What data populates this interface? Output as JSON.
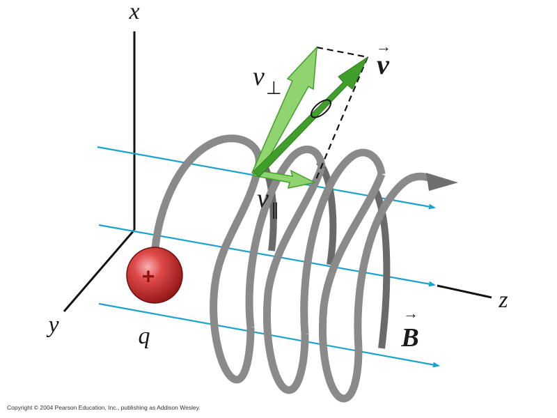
{
  "labels": {
    "x_axis": "x",
    "y_axis": "y",
    "z_axis": "z",
    "velocity_symbol": "v",
    "v_perp_symbol": "v",
    "v_perp_sub": "⊥",
    "v_par_symbol": "v",
    "v_par_sub": "∥",
    "field_symbol": "B",
    "vector_arrow": "→",
    "charge_symbol": "q",
    "charge_sign": "+"
  },
  "copyright": "Copyright © 2004 Pearson Education, Inc., publishing as Addison Wesley.",
  "colors": {
    "field_line": "#1aa3cc",
    "helix": "#8a8a8a",
    "helix_back": "#6a6a6a",
    "velocity_dark": "#3f9f2a",
    "velocity_light": "#8fd46f",
    "charge": "#c92a2a",
    "axis": "#111111"
  }
}
